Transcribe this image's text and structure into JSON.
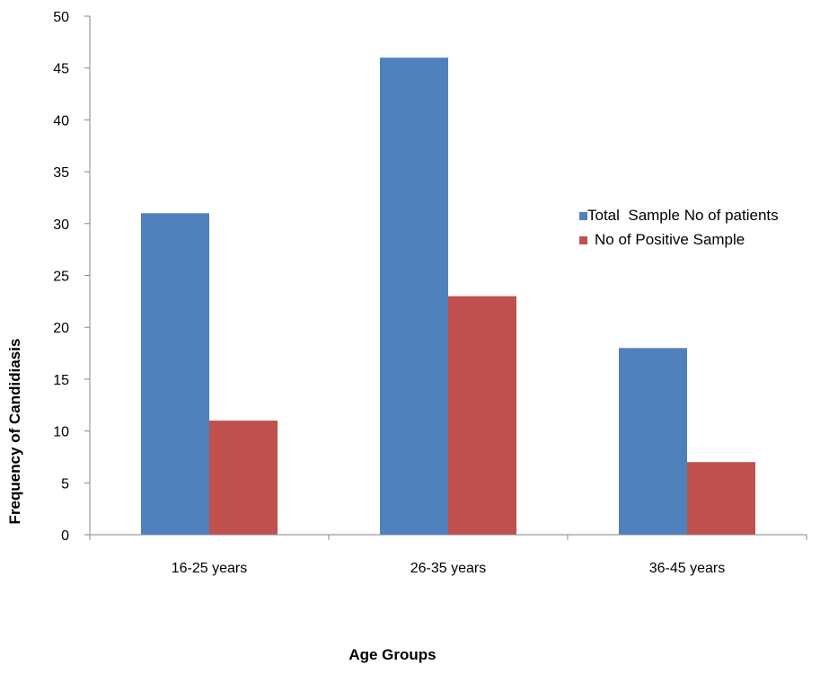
{
  "chart_data": {
    "type": "bar",
    "categories": [
      "16-25 years",
      "26-35 years",
      "36-45 years"
    ],
    "series": [
      {
        "name": "Total  Sample No of patients",
        "values": [
          31,
          46,
          18
        ],
        "color": "#4F81BD"
      },
      {
        "name": "No of Positive Sample",
        "values": [
          11,
          23,
          7
        ],
        "color": "#C0504D"
      }
    ],
    "xlabel": "Age Groups",
    "ylabel": "Frequency of Candidiasis",
    "ylim": [
      0,
      50
    ],
    "yticks": [
      0,
      5,
      10,
      15,
      20,
      25,
      30,
      35,
      40,
      45,
      50
    ],
    "grid": false,
    "legend_position": "right"
  }
}
